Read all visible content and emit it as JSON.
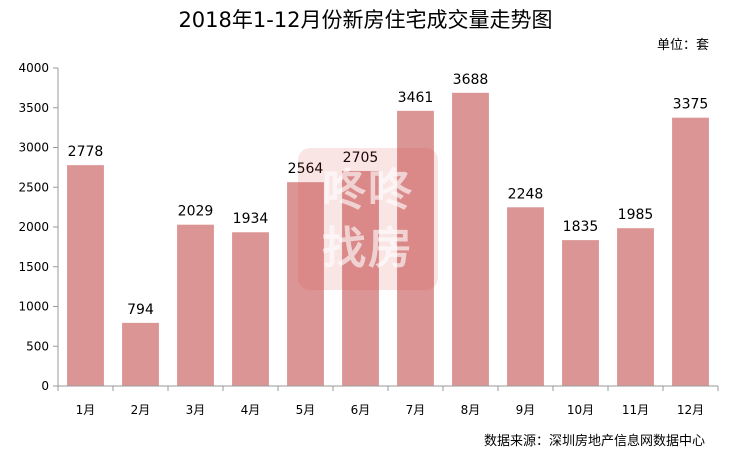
{
  "chart_data": {
    "type": "bar",
    "title": "2018年1-12月份新房住宅成交量走势图",
    "unit_label": "单位：套",
    "source": "数据来源：深圳房地产信息网数据中心",
    "categories": [
      "1月",
      "2月",
      "3月",
      "4月",
      "5月",
      "6月",
      "7月",
      "8月",
      "9月",
      "10月",
      "11月",
      "12月"
    ],
    "values": [
      2778,
      794,
      2029,
      1934,
      2564,
      2705,
      3461,
      3688,
      2248,
      1835,
      1985,
      3375
    ],
    "ylim": [
      0,
      4000
    ],
    "yticks": [
      0,
      500,
      1000,
      1500,
      2000,
      2500,
      3000,
      3500,
      4000
    ],
    "xlabel": "",
    "ylabel": "",
    "grid": false,
    "legend": "none",
    "data_labels": true,
    "bar_color": "#db9595",
    "axis_color": "#9a9a9a",
    "watermark": {
      "line1": "咚咚",
      "line2": "找房",
      "color": "#d63434"
    }
  }
}
